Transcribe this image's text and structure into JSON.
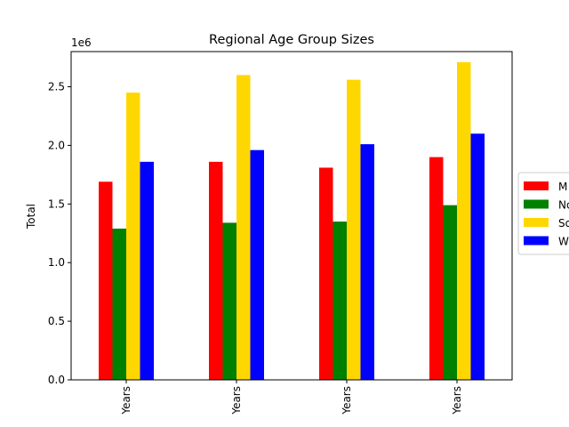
{
  "chart_data": {
    "type": "bar",
    "title": "Regional Age Group Sizes",
    "ylabel": "Total",
    "xlabel": "",
    "y_multiplier_label": "1e6",
    "ylim": [
      0,
      2800000
    ],
    "yticks": [
      0,
      500000,
      1000000,
      1500000,
      2000000,
      2500000
    ],
    "ytick_labels": [
      "0.0",
      "0.5",
      "1.0",
      "1.5",
      "2.0",
      "2.5"
    ],
    "categories": [
      "Years",
      "Years",
      "Years",
      "Years"
    ],
    "series": [
      {
        "name": "M",
        "color": "#ff0000",
        "values": [
          1690000,
          1860000,
          1810000,
          1900000
        ]
      },
      {
        "name": "No",
        "color": "#008000",
        "values": [
          1290000,
          1340000,
          1350000,
          1490000
        ]
      },
      {
        "name": "So",
        "color": "#ffd700",
        "values": [
          2450000,
          2600000,
          2560000,
          2710000
        ]
      },
      {
        "name": "W",
        "color": "#0000ff",
        "values": [
          1860000,
          1960000,
          2010000,
          2100000
        ]
      }
    ],
    "legend_position": "center-right",
    "grid": false
  }
}
